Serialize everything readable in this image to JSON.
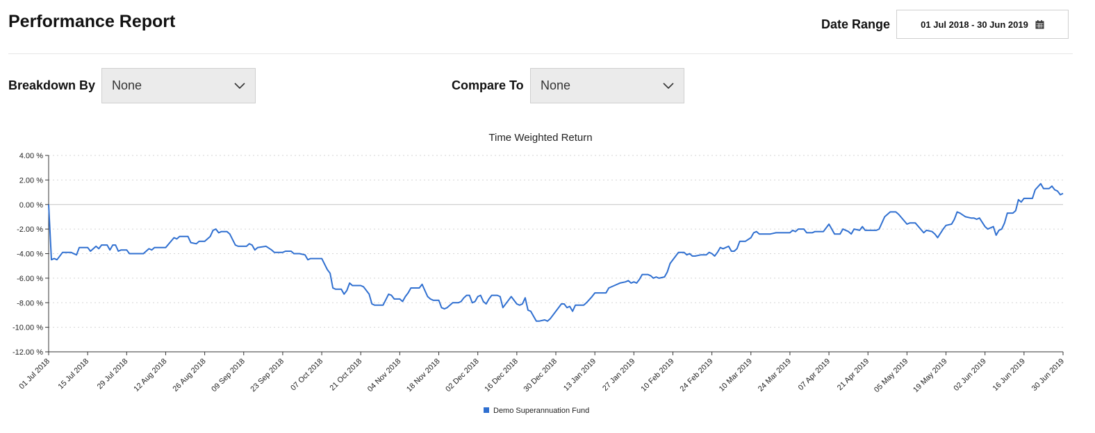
{
  "header": {
    "title": "Performance Report",
    "date_range_label": "Date Range",
    "date_range_value": "01 Jul 2018 - 30 Jun 2019",
    "calendar_icon": "calendar-icon"
  },
  "filters": {
    "breakdown_label": "Breakdown By",
    "breakdown_value": "None",
    "compare_label": "Compare To",
    "compare_value": "None",
    "dropdown_icon": "chevron-down-icon"
  },
  "chart_data": {
    "type": "line",
    "title": "Time Weighted Return",
    "xlabel": "",
    "ylabel": "",
    "y_ticks": [
      "4.00 %",
      "2.00 %",
      "0.00 %",
      "-2.00 %",
      "-4.00 %",
      "-6.00 %",
      "-8.00 %",
      "-10.00 %",
      "-12.00 %"
    ],
    "ylim": [
      -12,
      4
    ],
    "x_ticks": [
      "01 Jul 2018",
      "15 Jul 2018",
      "29 Jul 2018",
      "12 Aug 2018",
      "26 Aug 2018",
      "09 Sep 2018",
      "23 Sep 2018",
      "07 Oct 2018",
      "21 Oct 2018",
      "04 Nov 2018",
      "18 Nov 2018",
      "02 Dec 2018",
      "16 Dec 2018",
      "30 Dec 2018",
      "13 Jan 2019",
      "27 Jan 2019",
      "10 Feb 2019",
      "24 Feb 2019",
      "10 Mar 2019",
      "24 Mar 2019",
      "07 Apr 2019",
      "21 Apr 2019",
      "05 May 2019",
      "19 May 2019",
      "02 Jun 2019",
      "16 Jun 2019",
      "30 Jun 2019"
    ],
    "grid": true,
    "legend_position": "bottom",
    "series": [
      {
        "name": "Demo Superannuation Fund",
        "color": "#2f6fd0",
        "points": [
          [
            "2018-07-01",
            0.0
          ],
          [
            "2018-07-02",
            -4.5
          ],
          [
            "2018-07-03",
            -4.4
          ],
          [
            "2018-07-04",
            -4.5
          ],
          [
            "2018-07-06",
            -3.9
          ],
          [
            "2018-07-09",
            -3.9
          ],
          [
            "2018-07-11",
            -4.1
          ],
          [
            "2018-07-12",
            -3.5
          ],
          [
            "2018-07-15",
            -3.5
          ],
          [
            "2018-07-16",
            -3.8
          ],
          [
            "2018-07-18",
            -3.4
          ],
          [
            "2018-07-19",
            -3.6
          ],
          [
            "2018-07-20",
            -3.3
          ],
          [
            "2018-07-22",
            -3.3
          ],
          [
            "2018-07-23",
            -3.7
          ],
          [
            "2018-07-24",
            -3.3
          ],
          [
            "2018-07-25",
            -3.3
          ],
          [
            "2018-07-26",
            -3.8
          ],
          [
            "2018-07-27",
            -3.7
          ],
          [
            "2018-07-29",
            -3.7
          ],
          [
            "2018-07-30",
            -4.0
          ],
          [
            "2018-08-01",
            -4.0
          ],
          [
            "2018-08-04",
            -4.0
          ],
          [
            "2018-08-06",
            -3.6
          ],
          [
            "2018-08-07",
            -3.7
          ],
          [
            "2018-08-08",
            -3.5
          ],
          [
            "2018-08-12",
            -3.5
          ],
          [
            "2018-08-15",
            -2.7
          ],
          [
            "2018-08-16",
            -2.8
          ],
          [
            "2018-08-17",
            -2.6
          ],
          [
            "2018-08-20",
            -2.6
          ],
          [
            "2018-08-21",
            -3.1
          ],
          [
            "2018-08-23",
            -3.2
          ],
          [
            "2018-08-24",
            -3.0
          ],
          [
            "2018-08-26",
            -3.0
          ],
          [
            "2018-08-28",
            -2.6
          ],
          [
            "2018-08-29",
            -2.1
          ],
          [
            "2018-08-30",
            -2.0
          ],
          [
            "2018-08-31",
            -2.3
          ],
          [
            "2018-09-01",
            -2.2
          ],
          [
            "2018-09-03",
            -2.2
          ],
          [
            "2018-09-04",
            -2.4
          ],
          [
            "2018-09-06",
            -3.3
          ],
          [
            "2018-09-07",
            -3.4
          ],
          [
            "2018-09-10",
            -3.4
          ],
          [
            "2018-09-11",
            -3.2
          ],
          [
            "2018-09-12",
            -3.3
          ],
          [
            "2018-09-13",
            -3.7
          ],
          [
            "2018-09-14",
            -3.5
          ],
          [
            "2018-09-17",
            -3.4
          ],
          [
            "2018-09-19",
            -3.7
          ],
          [
            "2018-09-20",
            -3.9
          ],
          [
            "2018-09-23",
            -3.9
          ],
          [
            "2018-09-24",
            -3.8
          ],
          [
            "2018-09-26",
            -3.8
          ],
          [
            "2018-09-27",
            -4.0
          ],
          [
            "2018-09-29",
            -4.0
          ],
          [
            "2018-10-01",
            -4.1
          ],
          [
            "2018-10-02",
            -4.5
          ],
          [
            "2018-10-03",
            -4.4
          ],
          [
            "2018-10-07",
            -4.4
          ],
          [
            "2018-10-09",
            -5.3
          ],
          [
            "2018-10-10",
            -5.6
          ],
          [
            "2018-10-11",
            -6.8
          ],
          [
            "2018-10-12",
            -6.9
          ],
          [
            "2018-10-14",
            -6.9
          ],
          [
            "2018-10-15",
            -7.3
          ],
          [
            "2018-10-16",
            -7.0
          ],
          [
            "2018-10-17",
            -6.4
          ],
          [
            "2018-10-18",
            -6.6
          ],
          [
            "2018-10-21",
            -6.6
          ],
          [
            "2018-10-22",
            -6.7
          ],
          [
            "2018-10-24",
            -7.3
          ],
          [
            "2018-10-25",
            -8.1
          ],
          [
            "2018-10-26",
            -8.2
          ],
          [
            "2018-10-29",
            -8.2
          ],
          [
            "2018-10-31",
            -7.3
          ],
          [
            "2018-11-01",
            -7.4
          ],
          [
            "2018-11-02",
            -7.7
          ],
          [
            "2018-11-04",
            -7.7
          ],
          [
            "2018-11-05",
            -7.9
          ],
          [
            "2018-11-06",
            -7.5
          ],
          [
            "2018-11-07",
            -7.2
          ],
          [
            "2018-11-08",
            -6.8
          ],
          [
            "2018-11-10",
            -6.8
          ],
          [
            "2018-11-11",
            -6.8
          ],
          [
            "2018-11-12",
            -6.5
          ],
          [
            "2018-11-13",
            -7.0
          ],
          [
            "2018-11-14",
            -7.5
          ],
          [
            "2018-11-15",
            -7.7
          ],
          [
            "2018-11-16",
            -7.8
          ],
          [
            "2018-11-18",
            -7.8
          ],
          [
            "2018-11-19",
            -8.4
          ],
          [
            "2018-11-20",
            -8.5
          ],
          [
            "2018-11-21",
            -8.4
          ],
          [
            "2018-11-23",
            -8.0
          ],
          [
            "2018-11-25",
            -8.0
          ],
          [
            "2018-11-26",
            -7.9
          ],
          [
            "2018-11-27",
            -7.6
          ],
          [
            "2018-11-28",
            -7.4
          ],
          [
            "2018-11-29",
            -7.4
          ],
          [
            "2018-11-30",
            -8.0
          ],
          [
            "2018-12-01",
            -7.9
          ],
          [
            "2018-12-02",
            -7.5
          ],
          [
            "2018-12-03",
            -7.4
          ],
          [
            "2018-12-04",
            -7.9
          ],
          [
            "2018-12-05",
            -8.1
          ],
          [
            "2018-12-06",
            -7.7
          ],
          [
            "2018-12-07",
            -7.4
          ],
          [
            "2018-12-09",
            -7.4
          ],
          [
            "2018-12-10",
            -7.5
          ],
          [
            "2018-12-11",
            -8.4
          ],
          [
            "2018-12-12",
            -8.1
          ],
          [
            "2018-12-13",
            -7.8
          ],
          [
            "2018-12-14",
            -7.5
          ],
          [
            "2018-12-16",
            -8.1
          ],
          [
            "2018-12-17",
            -8.2
          ],
          [
            "2018-12-18",
            -8.1
          ],
          [
            "2018-12-19",
            -7.6
          ],
          [
            "2018-12-20",
            -8.6
          ],
          [
            "2018-12-21",
            -8.7
          ],
          [
            "2018-12-23",
            -9.5
          ],
          [
            "2018-12-24",
            -9.5
          ],
          [
            "2018-12-26",
            -9.4
          ],
          [
            "2018-12-27",
            -9.5
          ],
          [
            "2018-12-28",
            -9.3
          ],
          [
            "2018-12-30",
            -8.7
          ],
          [
            "2019-01-01",
            -8.1
          ],
          [
            "2019-01-02",
            -8.1
          ],
          [
            "2019-01-03",
            -8.4
          ],
          [
            "2019-01-04",
            -8.3
          ],
          [
            "2019-01-05",
            -8.7
          ],
          [
            "2019-01-06",
            -8.2
          ],
          [
            "2019-01-07",
            -8.2
          ],
          [
            "2019-01-09",
            -8.2
          ],
          [
            "2019-01-10",
            -8.0
          ],
          [
            "2019-01-12",
            -7.5
          ],
          [
            "2019-01-13",
            -7.2
          ],
          [
            "2019-01-15",
            -7.2
          ],
          [
            "2019-01-17",
            -7.2
          ],
          [
            "2019-01-18",
            -6.8
          ],
          [
            "2019-01-20",
            -6.6
          ],
          [
            "2019-01-22",
            -6.4
          ],
          [
            "2019-01-24",
            -6.3
          ],
          [
            "2019-01-25",
            -6.2
          ],
          [
            "2019-01-26",
            -6.4
          ],
          [
            "2019-01-27",
            -6.3
          ],
          [
            "2019-01-28",
            -6.4
          ],
          [
            "2019-01-29",
            -6.1
          ],
          [
            "2019-01-30",
            -5.7
          ],
          [
            "2019-02-01",
            -5.7
          ],
          [
            "2019-02-02",
            -5.8
          ],
          [
            "2019-02-03",
            -6.0
          ],
          [
            "2019-02-04",
            -5.9
          ],
          [
            "2019-02-05",
            -6.0
          ],
          [
            "2019-02-07",
            -5.9
          ],
          [
            "2019-02-08",
            -5.5
          ],
          [
            "2019-02-09",
            -4.8
          ],
          [
            "2019-02-11",
            -4.2
          ],
          [
            "2019-02-12",
            -3.9
          ],
          [
            "2019-02-14",
            -3.9
          ],
          [
            "2019-02-15",
            -4.1
          ],
          [
            "2019-02-16",
            -4.0
          ],
          [
            "2019-02-17",
            -4.2
          ],
          [
            "2019-02-18",
            -4.2
          ],
          [
            "2019-02-20",
            -4.1
          ],
          [
            "2019-02-22",
            -4.1
          ],
          [
            "2019-02-23",
            -3.9
          ],
          [
            "2019-02-24",
            -4.0
          ],
          [
            "2019-02-25",
            -4.2
          ],
          [
            "2019-02-26",
            -3.9
          ],
          [
            "2019-02-27",
            -3.5
          ],
          [
            "2019-02-28",
            -3.6
          ],
          [
            "2019-03-01",
            -3.5
          ],
          [
            "2019-03-02",
            -3.4
          ],
          [
            "2019-03-03",
            -3.8
          ],
          [
            "2019-03-04",
            -3.8
          ],
          [
            "2019-03-05",
            -3.6
          ],
          [
            "2019-03-06",
            -3.0
          ],
          [
            "2019-03-08",
            -3.0
          ],
          [
            "2019-03-10",
            -2.7
          ],
          [
            "2019-03-11",
            -2.3
          ],
          [
            "2019-03-12",
            -2.2
          ],
          [
            "2019-03-13",
            -2.4
          ],
          [
            "2019-03-17",
            -2.4
          ],
          [
            "2019-03-19",
            -2.3
          ],
          [
            "2019-03-22",
            -2.3
          ],
          [
            "2019-03-24",
            -2.3
          ],
          [
            "2019-03-25",
            -2.1
          ],
          [
            "2019-03-26",
            -2.2
          ],
          [
            "2019-03-27",
            -2.0
          ],
          [
            "2019-03-29",
            -2.0
          ],
          [
            "2019-03-30",
            -2.3
          ],
          [
            "2019-04-01",
            -2.3
          ],
          [
            "2019-04-02",
            -2.2
          ],
          [
            "2019-04-05",
            -2.2
          ],
          [
            "2019-04-06",
            -1.9
          ],
          [
            "2019-04-07",
            -1.6
          ],
          [
            "2019-04-09",
            -2.4
          ],
          [
            "2019-04-11",
            -2.4
          ],
          [
            "2019-04-12",
            -2.0
          ],
          [
            "2019-04-14",
            -2.2
          ],
          [
            "2019-04-15",
            -2.4
          ],
          [
            "2019-04-16",
            -2.0
          ],
          [
            "2019-04-18",
            -2.1
          ],
          [
            "2019-04-19",
            -1.8
          ],
          [
            "2019-04-20",
            -2.1
          ],
          [
            "2019-04-24",
            -2.1
          ],
          [
            "2019-04-25",
            -2.0
          ],
          [
            "2019-04-27",
            -1.0
          ],
          [
            "2019-04-28",
            -0.8
          ],
          [
            "2019-04-29",
            -0.6
          ],
          [
            "2019-05-01",
            -0.6
          ],
          [
            "2019-05-02",
            -0.8
          ],
          [
            "2019-05-05",
            -1.6
          ],
          [
            "2019-05-06",
            -1.5
          ],
          [
            "2019-05-08",
            -1.5
          ],
          [
            "2019-05-11",
            -2.3
          ],
          [
            "2019-05-12",
            -2.1
          ],
          [
            "2019-05-14",
            -2.2
          ],
          [
            "2019-05-15",
            -2.4
          ],
          [
            "2019-05-16",
            -2.7
          ],
          [
            "2019-05-18",
            -2.0
          ],
          [
            "2019-05-19",
            -1.7
          ],
          [
            "2019-05-21",
            -1.6
          ],
          [
            "2019-05-22",
            -1.2
          ],
          [
            "2019-05-23",
            -0.6
          ],
          [
            "2019-05-24",
            -0.7
          ],
          [
            "2019-05-26",
            -1.0
          ],
          [
            "2019-05-28",
            -1.1
          ],
          [
            "2019-05-29",
            -1.1
          ],
          [
            "2019-05-30",
            -1.2
          ],
          [
            "2019-05-31",
            -1.1
          ],
          [
            "2019-06-02",
            -1.8
          ],
          [
            "2019-06-03",
            -2.0
          ],
          [
            "2019-06-05",
            -1.8
          ],
          [
            "2019-06-06",
            -2.5
          ],
          [
            "2019-06-07",
            -2.1
          ],
          [
            "2019-06-08",
            -2.0
          ],
          [
            "2019-06-09",
            -1.5
          ],
          [
            "2019-06-10",
            -0.7
          ],
          [
            "2019-06-12",
            -0.7
          ],
          [
            "2019-06-13",
            -0.5
          ],
          [
            "2019-06-14",
            0.4
          ],
          [
            "2019-06-15",
            0.2
          ],
          [
            "2019-06-16",
            0.5
          ],
          [
            "2019-06-19",
            0.5
          ],
          [
            "2019-06-20",
            1.2
          ],
          [
            "2019-06-22",
            1.7
          ],
          [
            "2019-06-23",
            1.3
          ],
          [
            "2019-06-25",
            1.3
          ],
          [
            "2019-06-26",
            1.5
          ],
          [
            "2019-06-27",
            1.2
          ],
          [
            "2019-06-28",
            1.1
          ],
          [
            "2019-06-29",
            0.8
          ],
          [
            "2019-06-30",
            0.9
          ]
        ]
      }
    ]
  }
}
